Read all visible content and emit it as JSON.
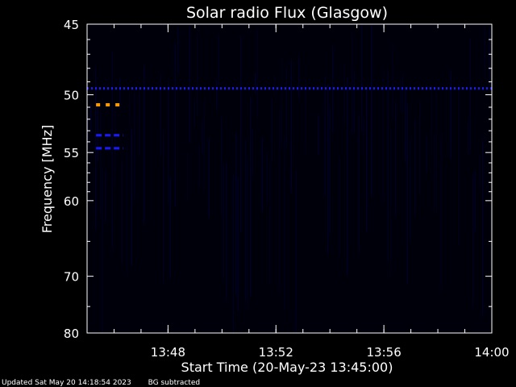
{
  "chart_data": {
    "type": "heatmap",
    "title": "Solar radio Flux (Glasgow)",
    "xlabel": "Start Time (20-May-23 13:45:00)",
    "ylabel": "Frequency [MHz]",
    "x_range": [
      "13:45:00",
      "14:00:00"
    ],
    "x_ticks": [
      "13:48",
      "13:52",
      "13:56",
      "14:00"
    ],
    "y_range": [
      45,
      80
    ],
    "y_ticks": [
      45,
      50,
      55,
      60,
      70,
      80
    ],
    "y_scale": "reciprocal",
    "colors": {
      "background": "#000000",
      "low": "#00003a",
      "mid": "#1a1aff",
      "high": "#ff9900"
    },
    "features": [
      {
        "label": "persistent band",
        "freq_mhz": 49.5,
        "time_start": "13:45:00",
        "time_end": "14:00:00",
        "intensity": "medium"
      },
      {
        "label": "burst",
        "freq_mhz": 50.8,
        "time_start": "13:45:20",
        "time_end": "13:46:20",
        "intensity": "high"
      },
      {
        "label": "burst",
        "freq_mhz": 53.4,
        "time_start": "13:45:20",
        "time_end": "13:46:20",
        "intensity": "medium"
      },
      {
        "label": "burst",
        "freq_mhz": 54.6,
        "time_start": "13:45:20",
        "time_end": "13:46:20",
        "intensity": "medium"
      }
    ]
  },
  "footer": {
    "updated": "Updated Sat May 20 14:18:54 2023",
    "note": "BG subtracted"
  }
}
